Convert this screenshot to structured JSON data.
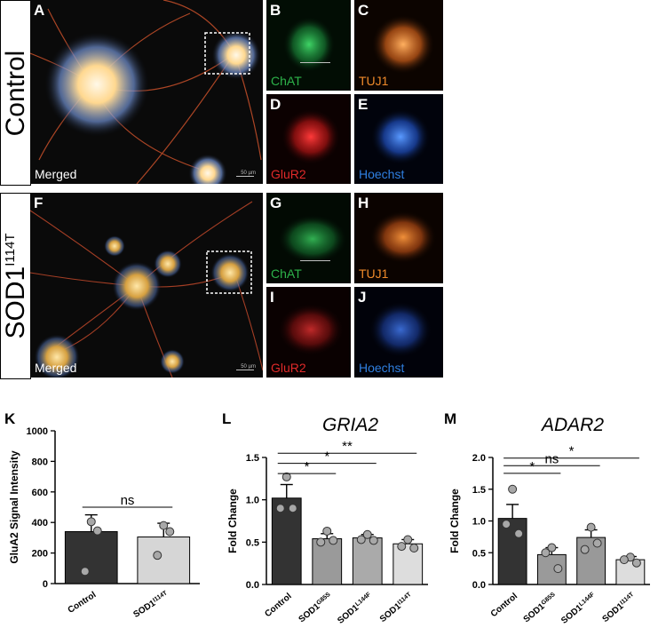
{
  "row1": {
    "condition_label": "Control",
    "panels": {
      "A": {
        "letter": "A",
        "caption": "Merged",
        "scale": "50 µm"
      },
      "B": {
        "letter": "B",
        "caption": "ChAT"
      },
      "C": {
        "letter": "C",
        "caption": "TUJ1"
      },
      "D": {
        "letter": "D",
        "caption": "GluR2"
      },
      "E": {
        "letter": "E",
        "caption": "Hoechst"
      }
    }
  },
  "row2": {
    "condition_label": "SOD1",
    "condition_sup": "I114T",
    "panels": {
      "F": {
        "letter": "F",
        "caption": "Merged",
        "scale": "50 µm"
      },
      "G": {
        "letter": "G",
        "caption": "ChAT"
      },
      "H": {
        "letter": "H",
        "caption": "TUJ1"
      },
      "I": {
        "letter": "I",
        "caption": "GluR2"
      },
      "J": {
        "letter": "J",
        "caption": "Hoechst"
      }
    }
  },
  "colors": {
    "chat": "#2db34a",
    "tuj1": "#ef8a2a",
    "glur2": "#e02a2a",
    "hoechst": "#2f7fe0"
  },
  "chart_data": [
    {
      "panel_letter": "K",
      "type": "bar",
      "title": "",
      "ylabel": "GluA2 Signal Intensity",
      "ylim": [
        0,
        1000
      ],
      "yticks": [
        "0",
        "200",
        "400",
        "600",
        "800",
        "1000"
      ],
      "categories": [
        {
          "base": "Control",
          "sup": ""
        },
        {
          "base": "SOD1",
          "sup": "I114T"
        }
      ],
      "values": [
        340,
        305
      ],
      "errors": [
        110,
        90
      ],
      "points": [
        [
          405,
          80,
          345
        ],
        [
          380,
          185,
          340
        ]
      ],
      "bar_colors": [
        "#333333",
        "#d6d6d6"
      ],
      "significance": [
        {
          "from": 0,
          "to": 1,
          "label": "ns",
          "y": 500
        }
      ]
    },
    {
      "panel_letter": "L",
      "type": "bar",
      "title": "GRIA2",
      "ylabel": "Fold Change",
      "ylim": [
        0,
        1.5
      ],
      "yticks": [
        "0.0",
        "0.5",
        "1.0",
        "1.5"
      ],
      "categories": [
        {
          "base": "Control",
          "sup": ""
        },
        {
          "base": "SOD1",
          "sup": "G85S"
        },
        {
          "base": "SOD1",
          "sup": "L144F"
        },
        {
          "base": "SOD1",
          "sup": "I114T"
        }
      ],
      "values": [
        1.02,
        0.54,
        0.55,
        0.48
      ],
      "errors": [
        0.16,
        0.06,
        0.04,
        0.05
      ],
      "points": [
        [
          1.27,
          0.9,
          0.9
        ],
        [
          0.63,
          0.5,
          0.52
        ],
        [
          0.59,
          0.53,
          0.52
        ],
        [
          0.53,
          0.45,
          0.43
        ]
      ],
      "bar_colors": [
        "#333333",
        "#9a9a9a",
        "#aaaaaa",
        "#dddddd"
      ],
      "significance": [
        {
          "from": 0,
          "to": 1,
          "label": "*",
          "y": 1.31
        },
        {
          "from": 0,
          "to": 2,
          "label": "*",
          "y": 1.43
        },
        {
          "from": 0,
          "to": 3,
          "label": "**",
          "y": 1.55
        }
      ]
    },
    {
      "panel_letter": "M",
      "type": "bar",
      "title": "ADAR2",
      "ylabel": "Fold Change",
      "ylim": [
        0,
        2.0
      ],
      "yticks": [
        "0.0",
        "0.5",
        "1.0",
        "1.5",
        "2.0"
      ],
      "categories": [
        {
          "base": "Control",
          "sup": ""
        },
        {
          "base": "SOD1",
          "sup": "G85S"
        },
        {
          "base": "SOD1",
          "sup": "L144F"
        },
        {
          "base": "SOD1",
          "sup": "I114T"
        }
      ],
      "values": [
        1.04,
        0.47,
        0.74,
        0.39
      ],
      "errors": [
        0.22,
        0.11,
        0.12,
        0.05
      ],
      "points": [
        [
          1.5,
          0.95,
          0.8
        ],
        [
          0.58,
          0.5,
          0.25
        ],
        [
          0.9,
          0.55,
          0.65
        ],
        [
          0.43,
          0.39,
          0.34
        ]
      ],
      "bar_colors": [
        "#333333",
        "#9a9a9a",
        "#999999",
        "#dddddd"
      ],
      "significance": [
        {
          "from": 0,
          "to": 1,
          "label": "*",
          "y": 1.75
        },
        {
          "from": 0,
          "to": 2,
          "label": "ns",
          "y": 1.87
        },
        {
          "from": 0,
          "to": 3,
          "label": "*",
          "y": 1.99
        }
      ]
    }
  ]
}
